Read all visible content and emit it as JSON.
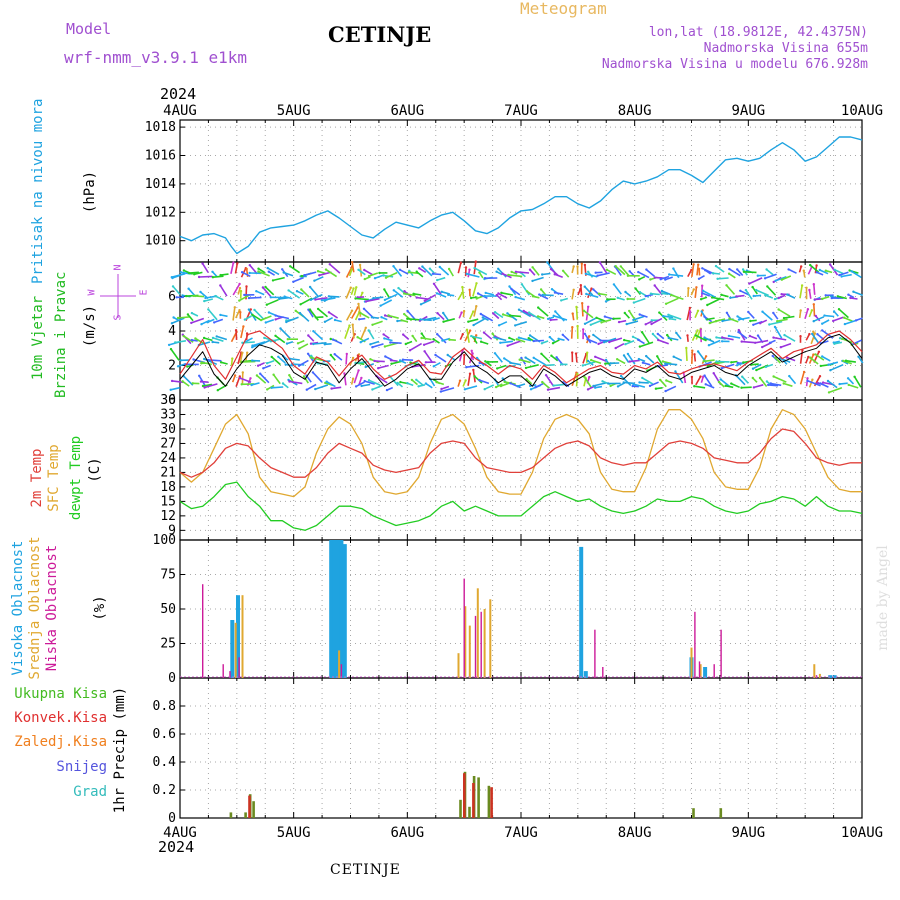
{
  "header": {
    "model_label": "Model",
    "model_name": "wrf-nmm_v3.9.1  e1km",
    "station": "CETINJE",
    "meteogram": "Meteogram",
    "lonlat": "lon,lat (18.9812E, 42.4375N)",
    "elev": "Nadmorska Visina 655m",
    "elev_model": "Nadmorska Visina u modelu 676.928m",
    "year_top": "2024",
    "year_bottom": "2024",
    "footer_station": "CETINJE",
    "credit": "made by Angel"
  },
  "colors": {
    "pressure": "#1fa3e0",
    "wind_label": "#22bb22",
    "temp2m": "#e0403a",
    "sfc": "#e0a830",
    "dewpt": "#22cc22",
    "high_cloud": "#1fa3e0",
    "mid_cloud": "#e0a830",
    "low_cloud": "#cc1a99",
    "total_precip": "#44bb22",
    "conv_precip": "#e03030",
    "frozen_precip": "#f08020",
    "snow": "#5555dd",
    "hail": "#33bbbb",
    "compass": "#bb44dd"
  },
  "x_axis": {
    "labels": [
      "4AUG",
      "5AUG",
      "6AUG",
      "7AUG",
      "8AUG",
      "9AUG",
      "10AUG"
    ]
  },
  "panels": {
    "pressure": {
      "label1": "Pritisak na nivou mora",
      "unit": "(hPa)"
    },
    "wind": {
      "label1": "10m Vjetar",
      "label2": "Brzina i Pravac",
      "unit": "(m/s)",
      "compass": {
        "n": "N",
        "s": "S",
        "w": "W",
        "e": "E"
      }
    },
    "temp": {
      "label1": "2m Temp",
      "label2": "SFC Temp",
      "label3": "dewpt Temp",
      "unit": "(C)"
    },
    "cloud": {
      "label1": "Visoka Oblacnost",
      "label2": "Srednja Oblacnost",
      "label3": "Niska Oblacnost",
      "unit": "(%)"
    },
    "precip": {
      "unit": "1hr Precip (mm)",
      "legend": [
        "Ukupna Kisa",
        "Konvek.Kisa",
        "Zaledj.Kisa",
        "Snijeg",
        "Grad"
      ]
    }
  },
  "chart_data": [
    {
      "type": "line",
      "name": "pressure",
      "ylim": [
        1008.5,
        1018.5
      ],
      "yticks": [
        "1010",
        "1012",
        "1014",
        "1016",
        "1018"
      ],
      "ytick_values": [
        1010,
        1012,
        1014,
        1016,
        1018
      ],
      "x_days": [
        0,
        0.1,
        0.2,
        0.3,
        0.4,
        0.45,
        0.5,
        0.6,
        0.7,
        0.8,
        0.9,
        1.0,
        1.1,
        1.2,
        1.3,
        1.4,
        1.5,
        1.6,
        1.7,
        1.8,
        1.9,
        2.0,
        2.1,
        2.2,
        2.3,
        2.4,
        2.5,
        2.6,
        2.7,
        2.8,
        2.9,
        3.0,
        3.1,
        3.2,
        3.3,
        3.4,
        3.5,
        3.6,
        3.7,
        3.8,
        3.9,
        4.0,
        4.1,
        4.2,
        4.3,
        4.4,
        4.5,
        4.6,
        4.7,
        4.8,
        4.9,
        5.0,
        5.1,
        5.2,
        5.3,
        5.4,
        5.5,
        5.6,
        5.7,
        5.8,
        5.9,
        6.0
      ],
      "values": [
        1010.3,
        1010.0,
        1010.4,
        1010.5,
        1010.2,
        1009.6,
        1009.1,
        1009.6,
        1010.6,
        1010.9,
        1011.0,
        1011.1,
        1011.4,
        1011.8,
        1012.1,
        1011.6,
        1011.0,
        1010.4,
        1010.2,
        1010.8,
        1011.3,
        1011.1,
        1010.9,
        1011.4,
        1011.8,
        1012.0,
        1011.4,
        1010.7,
        1010.5,
        1010.9,
        1011.6,
        1012.1,
        1012.2,
        1012.6,
        1013.1,
        1013.1,
        1012.6,
        1012.3,
        1012.8,
        1013.6,
        1014.2,
        1014.0,
        1014.2,
        1014.5,
        1015.0,
        1015.0,
        1014.6,
        1014.1,
        1014.9,
        1015.7,
        1015.8,
        1015.6,
        1015.8,
        1016.4,
        1016.9,
        1016.4,
        1015.6,
        1015.9,
        1016.6,
        1017.3,
        1017.3,
        1017.1
      ]
    },
    {
      "type": "line",
      "name": "wind",
      "ylim": [
        0,
        8
      ],
      "yticks": [
        "0",
        "2",
        "4",
        "6"
      ],
      "ytick_values": [
        0,
        2,
        4,
        6
      ],
      "x_days": [
        0,
        0.1,
        0.2,
        0.3,
        0.4,
        0.5,
        0.6,
        0.7,
        0.8,
        0.9,
        1.0,
        1.1,
        1.2,
        1.3,
        1.4,
        1.5,
        1.6,
        1.7,
        1.8,
        1.9,
        2.0,
        2.1,
        2.2,
        2.3,
        2.4,
        2.5,
        2.6,
        2.7,
        2.8,
        2.9,
        3.0,
        3.1,
        3.2,
        3.3,
        3.4,
        3.5,
        3.6,
        3.7,
        3.8,
        3.9,
        4.0,
        4.1,
        4.2,
        4.3,
        4.4,
        4.5,
        4.6,
        4.7,
        4.8,
        4.9,
        5.0,
        5.1,
        5.2,
        5.3,
        5.4,
        5.5,
        5.6,
        5.7,
        5.8,
        5.9,
        6.0
      ],
      "series": [
        {
          "values": [
            1.5,
            2.5,
            3.5,
            2.0,
            1.2,
            2.5,
            3.8,
            4.0,
            3.5,
            3.0,
            2.0,
            1.5,
            2.5,
            2.2,
            1.4,
            2.2,
            2.6,
            1.8,
            1.2,
            1.5,
            2.0,
            2.3,
            1.6,
            1.5,
            2.5,
            3.0,
            2.4,
            2.0,
            1.5,
            2.0,
            1.8,
            1.2,
            2.0,
            1.6,
            1.0,
            1.4,
            1.8,
            2.0,
            1.6,
            1.5,
            2.0,
            1.8,
            2.2,
            1.6,
            1.5,
            1.8,
            2.0,
            2.1,
            1.9,
            1.7,
            2.2,
            2.6,
            3.0,
            2.4,
            2.8,
            3.0,
            3.2,
            3.8,
            4.0,
            3.5,
            2.8
          ]
        },
        {
          "values": [
            1.2,
            2.0,
            2.8,
            1.5,
            0.8,
            1.8,
            2.6,
            3.2,
            3.0,
            2.6,
            1.6,
            1.2,
            2.2,
            2.0,
            1.0,
            1.8,
            2.4,
            1.6,
            0.8,
            1.2,
            1.8,
            2.1,
            1.2,
            1.2,
            2.2,
            2.8,
            2.0,
            1.6,
            1.0,
            1.4,
            1.4,
            0.8,
            1.8,
            1.4,
            0.8,
            1.2,
            1.6,
            1.8,
            1.4,
            1.2,
            1.8,
            1.6,
            2.0,
            1.4,
            1.2,
            1.6,
            1.8,
            2.0,
            1.6,
            1.4,
            2.0,
            2.4,
            2.8,
            2.2,
            2.5,
            2.8,
            3.0,
            3.6,
            3.8,
            3.3,
            2.4
          ]
        }
      ]
    },
    {
      "type": "line",
      "name": "temperature",
      "ylim": [
        7,
        36
      ],
      "yticks": [
        "9",
        "12",
        "15",
        "18",
        "21",
        "24",
        "27",
        "30",
        "33",
        "36"
      ],
      "ytick_values": [
        9,
        12,
        15,
        18,
        21,
        24,
        27,
        30,
        33,
        36
      ],
      "x_days": [
        0,
        0.1,
        0.2,
        0.3,
        0.4,
        0.5,
        0.6,
        0.7,
        0.8,
        0.9,
        1.0,
        1.1,
        1.2,
        1.3,
        1.4,
        1.5,
        1.6,
        1.7,
        1.8,
        1.9,
        2.0,
        2.1,
        2.2,
        2.3,
        2.4,
        2.5,
        2.6,
        2.7,
        2.8,
        2.9,
        3.0,
        3.1,
        3.2,
        3.3,
        3.4,
        3.5,
        3.6,
        3.7,
        3.8,
        3.9,
        4.0,
        4.1,
        4.2,
        4.3,
        4.4,
        4.5,
        4.6,
        4.7,
        4.8,
        4.9,
        5.0,
        5.1,
        5.2,
        5.3,
        5.4,
        5.5,
        5.6,
        5.7,
        5.8,
        5.9,
        6.0
      ],
      "series": [
        {
          "name": "2m Temp",
          "values": [
            21,
            20,
            21,
            23,
            26,
            27,
            26.5,
            24,
            22,
            21,
            20,
            20,
            22,
            25,
            27,
            26,
            25,
            22.5,
            21.5,
            21,
            21.5,
            22,
            25,
            27,
            27.5,
            27,
            24,
            22,
            21.5,
            21,
            21,
            22,
            24,
            26,
            27,
            27.5,
            26.5,
            24,
            23,
            22.5,
            23,
            23,
            25,
            27,
            27.5,
            27,
            26,
            24,
            23.5,
            23,
            23,
            25,
            28,
            30,
            29.5,
            27,
            24,
            23,
            22.5,
            23,
            23
          ]
        },
        {
          "name": "SFC Temp",
          "values": [
            21,
            19,
            21,
            26,
            31,
            33,
            29,
            20,
            17,
            16.5,
            16,
            18,
            25,
            30,
            32.5,
            31,
            27,
            20,
            17,
            16.5,
            17,
            20,
            27,
            32,
            33,
            31,
            26,
            20,
            17,
            16.5,
            16.5,
            21,
            28,
            32,
            33,
            32,
            29,
            21,
            17.5,
            17,
            17,
            22,
            30,
            34,
            34,
            32,
            28,
            21,
            18,
            17.5,
            17.5,
            22,
            30,
            34,
            33,
            30,
            25,
            20,
            17.5,
            17,
            17
          ]
        },
        {
          "name": "dewpt Temp",
          "values": [
            15,
            13.5,
            14,
            16,
            18.5,
            19,
            16,
            14,
            11,
            11,
            9.5,
            9,
            10,
            12,
            14,
            14,
            13.5,
            12,
            11,
            10,
            10.5,
            11,
            12,
            14,
            15,
            13,
            14,
            13,
            12,
            12,
            12,
            14,
            16,
            17,
            16,
            15,
            15.5,
            14,
            13,
            12.5,
            13,
            14,
            15.5,
            15,
            15,
            16,
            15.5,
            14,
            13,
            12.5,
            13,
            14.5,
            15,
            16,
            15.5,
            14,
            16,
            14,
            13,
            13,
            12.5
          ]
        }
      ]
    },
    {
      "type": "bar",
      "name": "cloud",
      "ylim": [
        0,
        100
      ],
      "yticks": [
        "0",
        "25",
        "50",
        "75",
        "100"
      ],
      "ytick_values": [
        0,
        25,
        50,
        75,
        100
      ],
      "series": [
        {
          "name": "Visoka Oblacnost",
          "x_days": [
            0.46,
            0.51,
            1.33,
            1.36,
            1.39,
            1.42,
            1.45,
            3.53,
            3.57,
            4.5,
            4.62,
            5.72,
            5.76
          ],
          "values": [
            42,
            60,
            100,
            100,
            100,
            100,
            97,
            95,
            5,
            15,
            8,
            2,
            2
          ]
        },
        {
          "name": "Srednja Oblacnost",
          "x_days": [
            0.49,
            0.55,
            1.4,
            2.45,
            2.51,
            2.55,
            2.62,
            2.68,
            2.73,
            4.5,
            4.58,
            5.58,
            5.63
          ],
          "values": [
            40,
            60,
            20,
            18,
            52,
            38,
            65,
            50,
            57,
            22,
            10,
            10,
            3
          ]
        },
        {
          "name": "Niska Oblacnost",
          "x_days": [
            0.2,
            0.38,
            0.44,
            0.52,
            1.42,
            2.5,
            2.6,
            2.65,
            3.65,
            3.72,
            4.53,
            4.57,
            4.7,
            4.76,
            5.6
          ],
          "values": [
            68,
            10,
            5,
            15,
            10,
            72,
            45,
            48,
            35,
            8,
            48,
            12,
            10,
            35,
            2
          ]
        }
      ]
    },
    {
      "type": "bar",
      "name": "precip",
      "ylim": [
        0,
        1.0
      ],
      "yticks": [
        "0",
        "0.2",
        "0.4",
        "0.6",
        "0.8"
      ],
      "ytick_values": [
        0,
        0.2,
        0.4,
        0.6,
        0.8
      ],
      "series": [
        {
          "name": "Ukupna Kisa",
          "x_days": [
            0.45,
            0.58,
            0.62,
            0.65,
            2.47,
            2.51,
            2.55,
            2.59,
            2.63,
            2.72,
            4.52,
            4.76
          ],
          "values": [
            0.04,
            0.04,
            0.17,
            0.12,
            0.13,
            0.33,
            0.08,
            0.3,
            0.29,
            0.23,
            0.07,
            0.07
          ]
        },
        {
          "name": "Konvek.Kisa",
          "x_days": [
            0.6,
            2.49,
            2.57,
            2.73
          ],
          "values": [
            0.16,
            0.32,
            0.25,
            0.22
          ]
        }
      ]
    }
  ]
}
